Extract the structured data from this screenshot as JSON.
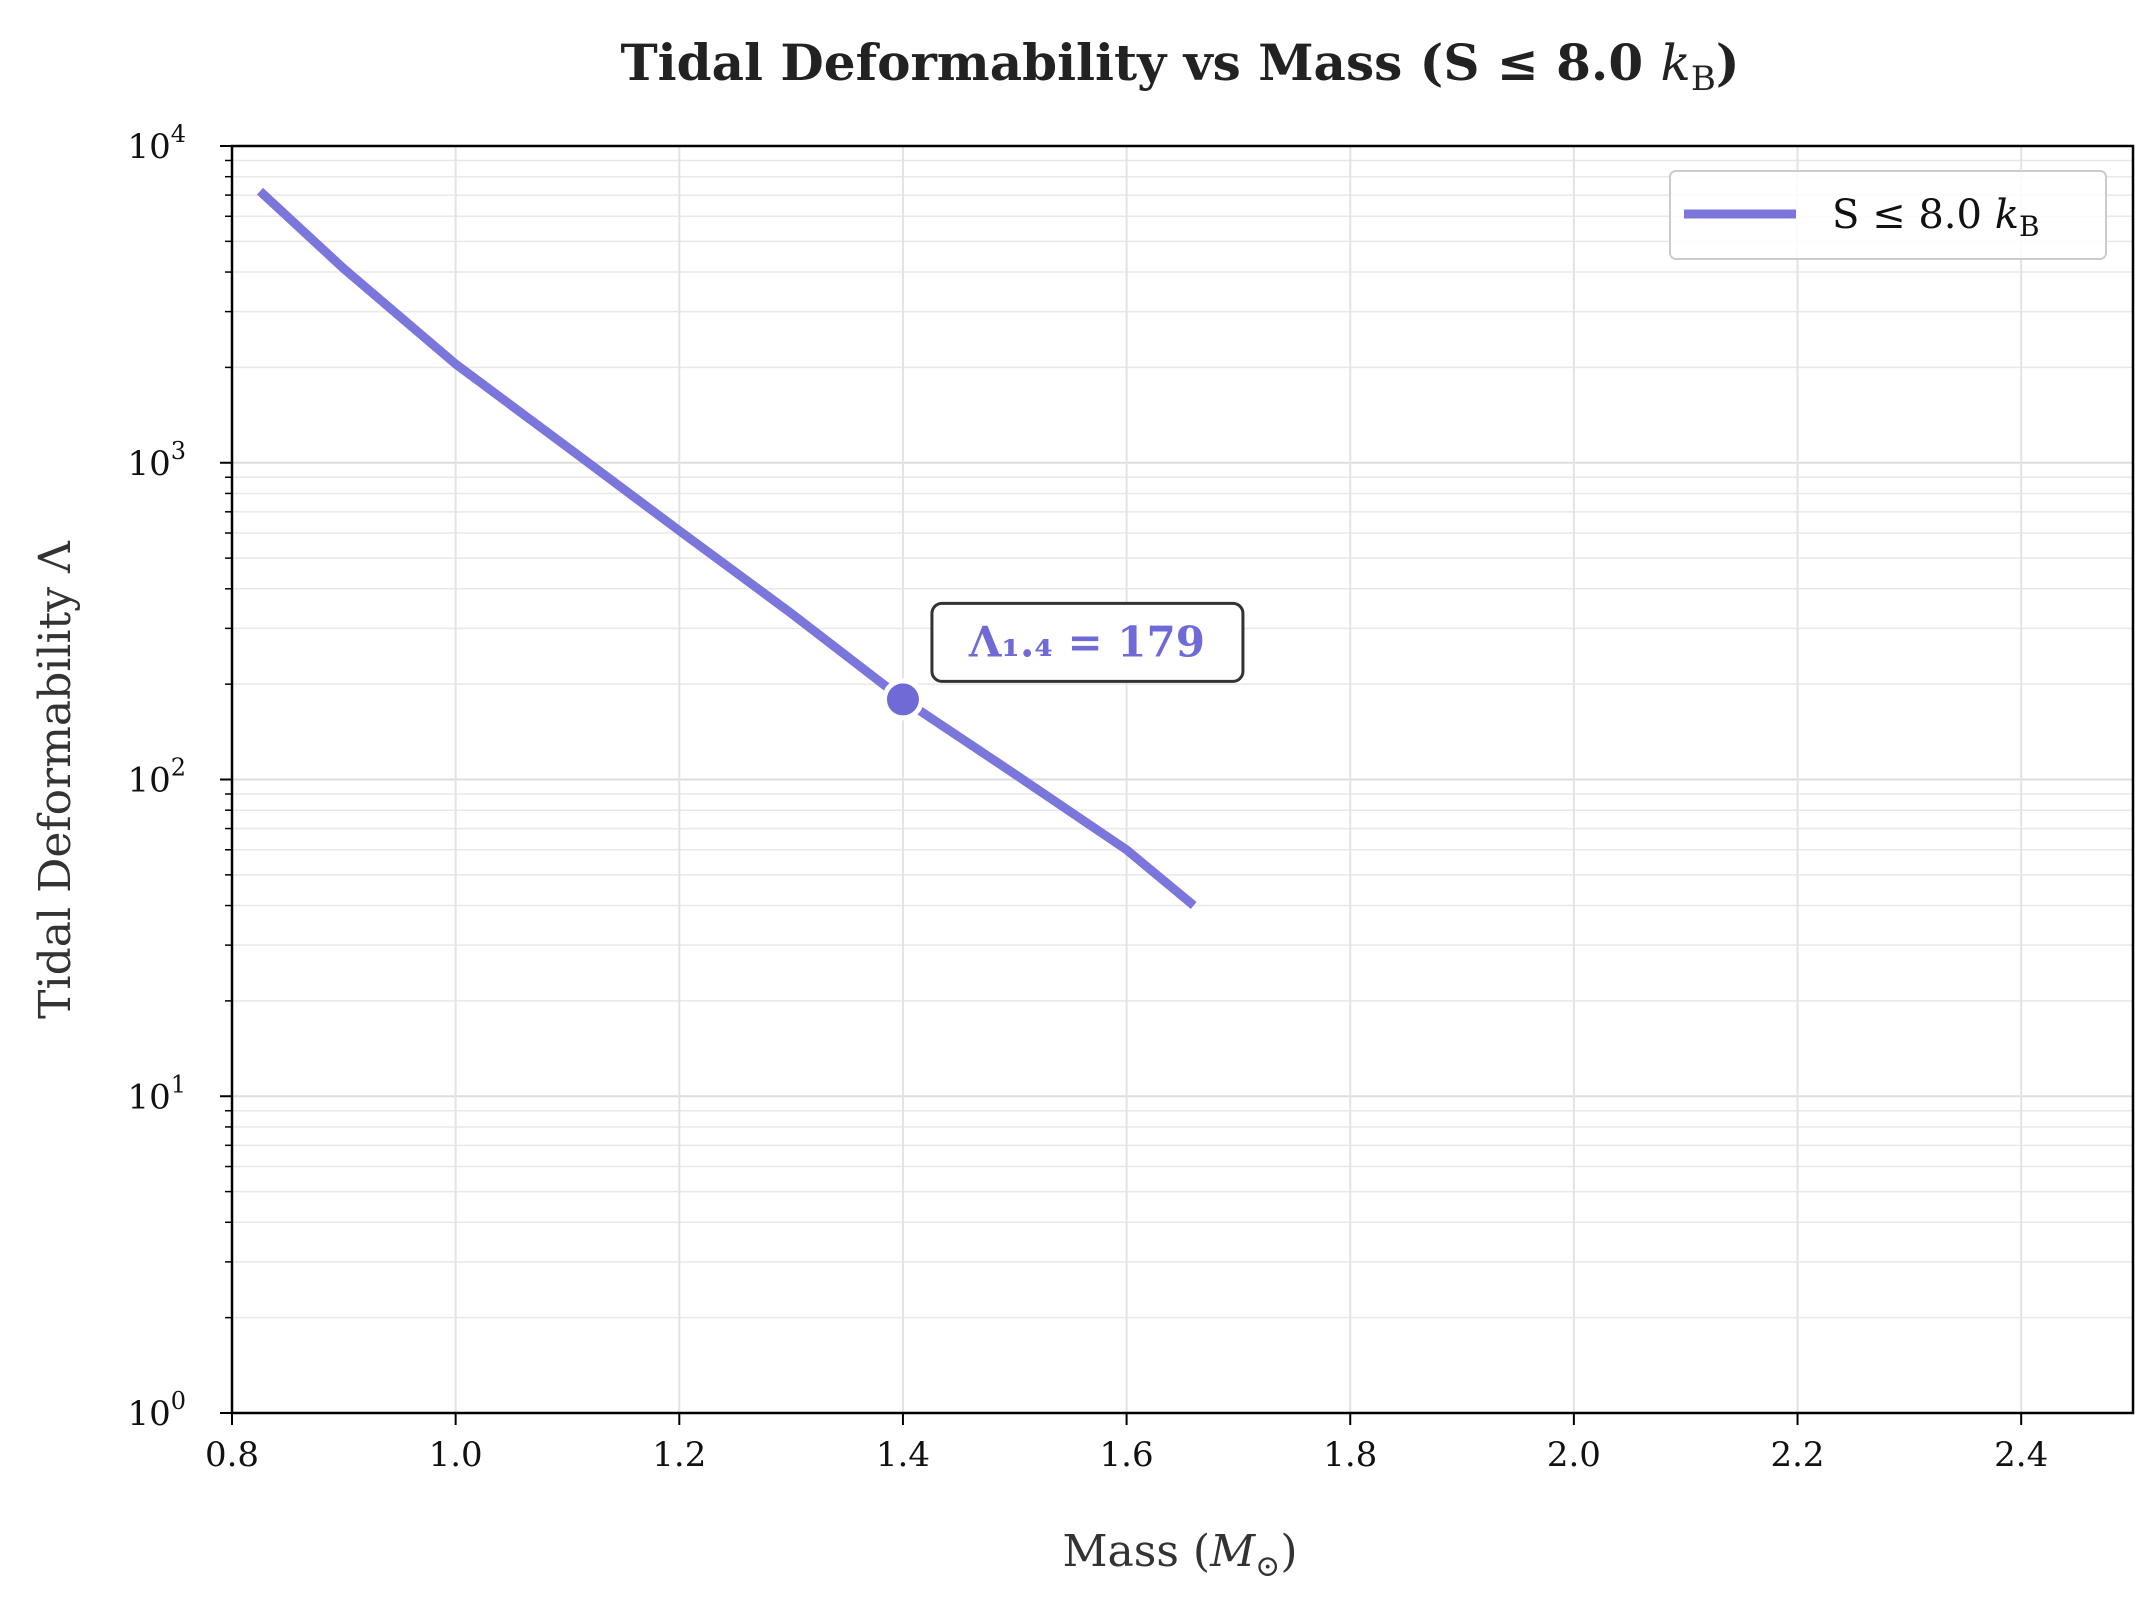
{
  "chart_data": {
    "type": "line",
    "title": "Tidal Deformability vs Mass (S ≤ 8.0 k_B)",
    "title_parts": {
      "main": "Tidal Deformability vs Mass (S ≤ 8.0 ",
      "italic": "k",
      "sub": "B",
      "close": ")"
    },
    "xlabel": "Mass (M⊙)",
    "xlabel_parts": {
      "main": "Mass (",
      "italic": "M",
      "sub": "⊙",
      "close": ")"
    },
    "ylabel": "Tidal Deformability Λ",
    "xlim": [
      0.8,
      2.5
    ],
    "ylim": [
      1,
      10000
    ],
    "yscale": "log",
    "grid": true,
    "x_ticks": [
      "0.8",
      "1.0",
      "1.2",
      "1.4",
      "1.6",
      "1.8",
      "2.0",
      "2.2",
      "2.4"
    ],
    "y_ticks": [
      {
        "base": "10",
        "exp": "0"
      },
      {
        "base": "10",
        "exp": "1"
      },
      {
        "base": "10",
        "exp": "2"
      },
      {
        "base": "10",
        "exp": "3"
      },
      {
        "base": "10",
        "exp": "4"
      }
    ],
    "legend_position": "top-right",
    "series": [
      {
        "name": "S ≤ 8.0 k_B",
        "name_parts": {
          "main": "S ≤ 8.0 ",
          "italic": "k",
          "sub": "B"
        },
        "color": "#7b76dc",
        "x": [
          0.825,
          0.9,
          1.0,
          1.1,
          1.2,
          1.3,
          1.4,
          1.5,
          1.6,
          1.66
        ],
        "y": [
          7200,
          4100,
          2050,
          1120,
          610,
          335,
          179,
          104,
          60,
          40
        ]
      }
    ],
    "annotation": {
      "text": "Λ₁.₄ = 179",
      "x": 1.4,
      "y": 179,
      "color": "#6f6ad6"
    }
  }
}
